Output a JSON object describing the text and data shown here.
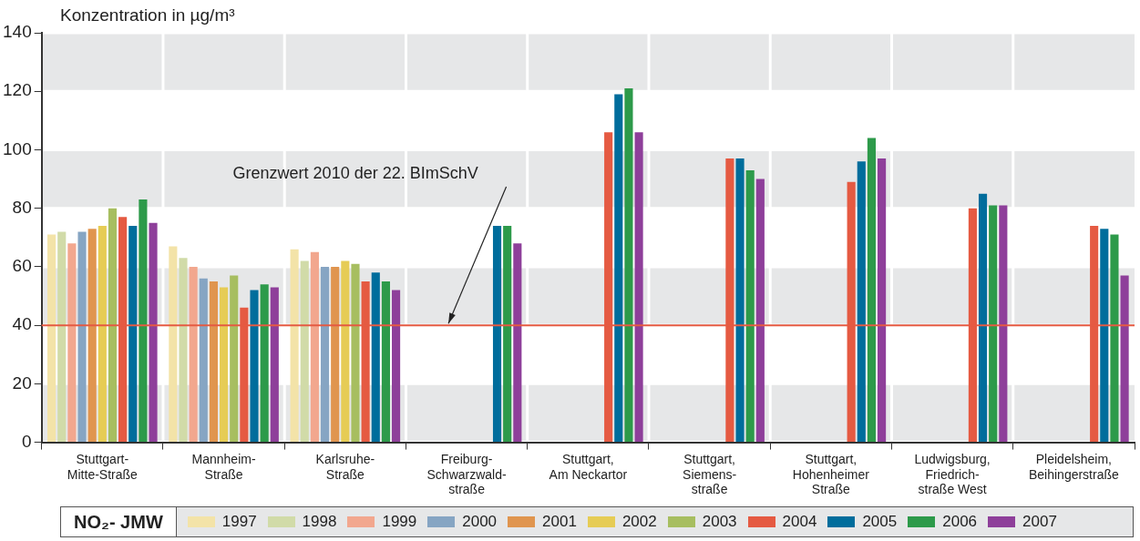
{
  "chart_data": {
    "type": "bar",
    "ylabel": "Konzentration in µg/m³",
    "legend_title": "NO₂- JMW",
    "categories": [
      "Stuttgart-\nMitte-Straße",
      "Mannheim-\nStraße",
      "Karlsruhe-\nStraße",
      "Freiburg-\nSchwarzwald-\nstraße",
      "Stuttgart,\nAm Neckartor",
      "Stuttgart,\nSiemens-\nstraße",
      "Stuttgart,\nHohenheimer\nStraße",
      "Ludwigsburg,\nFriedrich-\nstraße West",
      "Pleidelsheim,\nBeihingerstraße"
    ],
    "series": [
      {
        "name": "1997",
        "color": "#f3e3a8",
        "values": [
          71,
          67,
          66,
          null,
          null,
          null,
          null,
          null,
          null
        ]
      },
      {
        "name": "1998",
        "color": "#d1dba8",
        "values": [
          72,
          63,
          62,
          null,
          null,
          null,
          null,
          null,
          null
        ]
      },
      {
        "name": "1999",
        "color": "#f2a78e",
        "values": [
          68,
          60,
          65,
          null,
          null,
          null,
          null,
          null,
          null
        ]
      },
      {
        "name": "2000",
        "color": "#86a5c3",
        "values": [
          72,
          56,
          60,
          null,
          null,
          null,
          null,
          null,
          null
        ]
      },
      {
        "name": "2001",
        "color": "#e0954f",
        "values": [
          73,
          55,
          60,
          null,
          null,
          null,
          null,
          null,
          null
        ]
      },
      {
        "name": "2002",
        "color": "#e6cc55",
        "values": [
          74,
          53,
          62,
          null,
          null,
          null,
          null,
          null,
          null
        ]
      },
      {
        "name": "2003",
        "color": "#a7be60",
        "values": [
          80,
          57,
          61,
          null,
          null,
          null,
          null,
          null,
          null
        ]
      },
      {
        "name": "2004",
        "color": "#e55a42",
        "values": [
          77,
          46,
          55,
          null,
          106,
          97,
          89,
          80,
          74
        ]
      },
      {
        "name": "2005",
        "color": "#006d9c",
        "values": [
          74,
          52,
          58,
          74,
          119,
          97,
          96,
          85,
          73
        ]
      },
      {
        "name": "2006",
        "color": "#2d9a4a",
        "values": [
          83,
          54,
          55,
          74,
          121,
          93,
          104,
          81,
          71
        ]
      },
      {
        "name": "2007",
        "color": "#8e3f9a",
        "values": [
          75,
          53,
          52,
          68,
          106,
          90,
          97,
          81,
          57
        ]
      }
    ],
    "ylim": [
      0,
      140
    ],
    "yticks": [
      0,
      20,
      40,
      60,
      80,
      100,
      120,
      140
    ],
    "grid": true,
    "legend": "bottom",
    "annotations": [
      "Grenzwert 2010 der 22. BImSchV"
    ],
    "ref_lines": [
      {
        "axis": "y",
        "value": 40,
        "color": "#e55a42"
      }
    ]
  }
}
